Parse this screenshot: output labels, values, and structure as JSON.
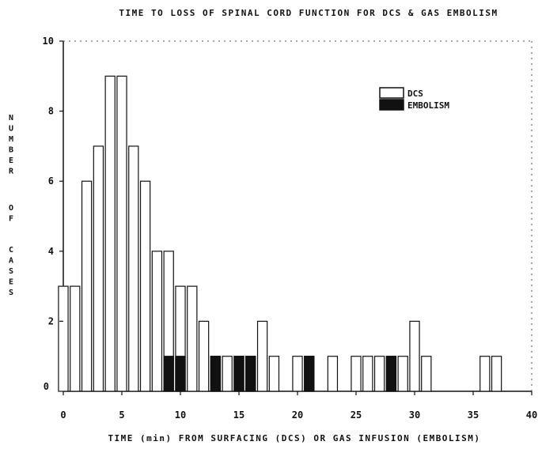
{
  "chart_data": {
    "type": "bar",
    "title": "TIME TO LOSS OF SPINAL CORD FUNCTION FOR DCS & GAS EMBOLISM",
    "xlabel": "TIME (min) FROM SURFACING (DCS) OR GAS INFUSION (EMBOLISM)",
    "ylabel": "NUMBER OF CASES",
    "ylabel_lines": [
      "NUMBER",
      "OF",
      "CASES"
    ],
    "xlim": [
      0,
      40
    ],
    "ylim": [
      0,
      10
    ],
    "x_ticks": [
      0,
      5,
      10,
      15,
      20,
      25,
      30,
      35,
      40
    ],
    "y_ticks": [
      2,
      4,
      6,
      8,
      10
    ],
    "y_zero_label": "0",
    "legend_position": "top-right",
    "series": [
      {
        "name": "DCS",
        "color": "#ffffff",
        "x": [
          0,
          1,
          2,
          3,
          4,
          5,
          6,
          7,
          8,
          9,
          10,
          11,
          12,
          13,
          14,
          15,
          16,
          17,
          18,
          20,
          21,
          23,
          25,
          26,
          27,
          28,
          29,
          30,
          31,
          36,
          37
        ],
        "values": [
          3,
          3,
          6,
          7,
          9,
          9,
          7,
          6,
          4,
          4,
          3,
          3,
          2,
          1,
          1,
          1,
          1,
          2,
          1,
          1,
          1,
          1,
          1,
          1,
          1,
          1,
          1,
          2,
          1,
          1,
          1
        ]
      },
      {
        "name": "EMBOLISM",
        "color": "#111111",
        "x": [
          9,
          10,
          13,
          15,
          16,
          21,
          28
        ],
        "values": [
          1,
          1,
          1,
          1,
          1,
          1,
          1
        ]
      }
    ]
  }
}
